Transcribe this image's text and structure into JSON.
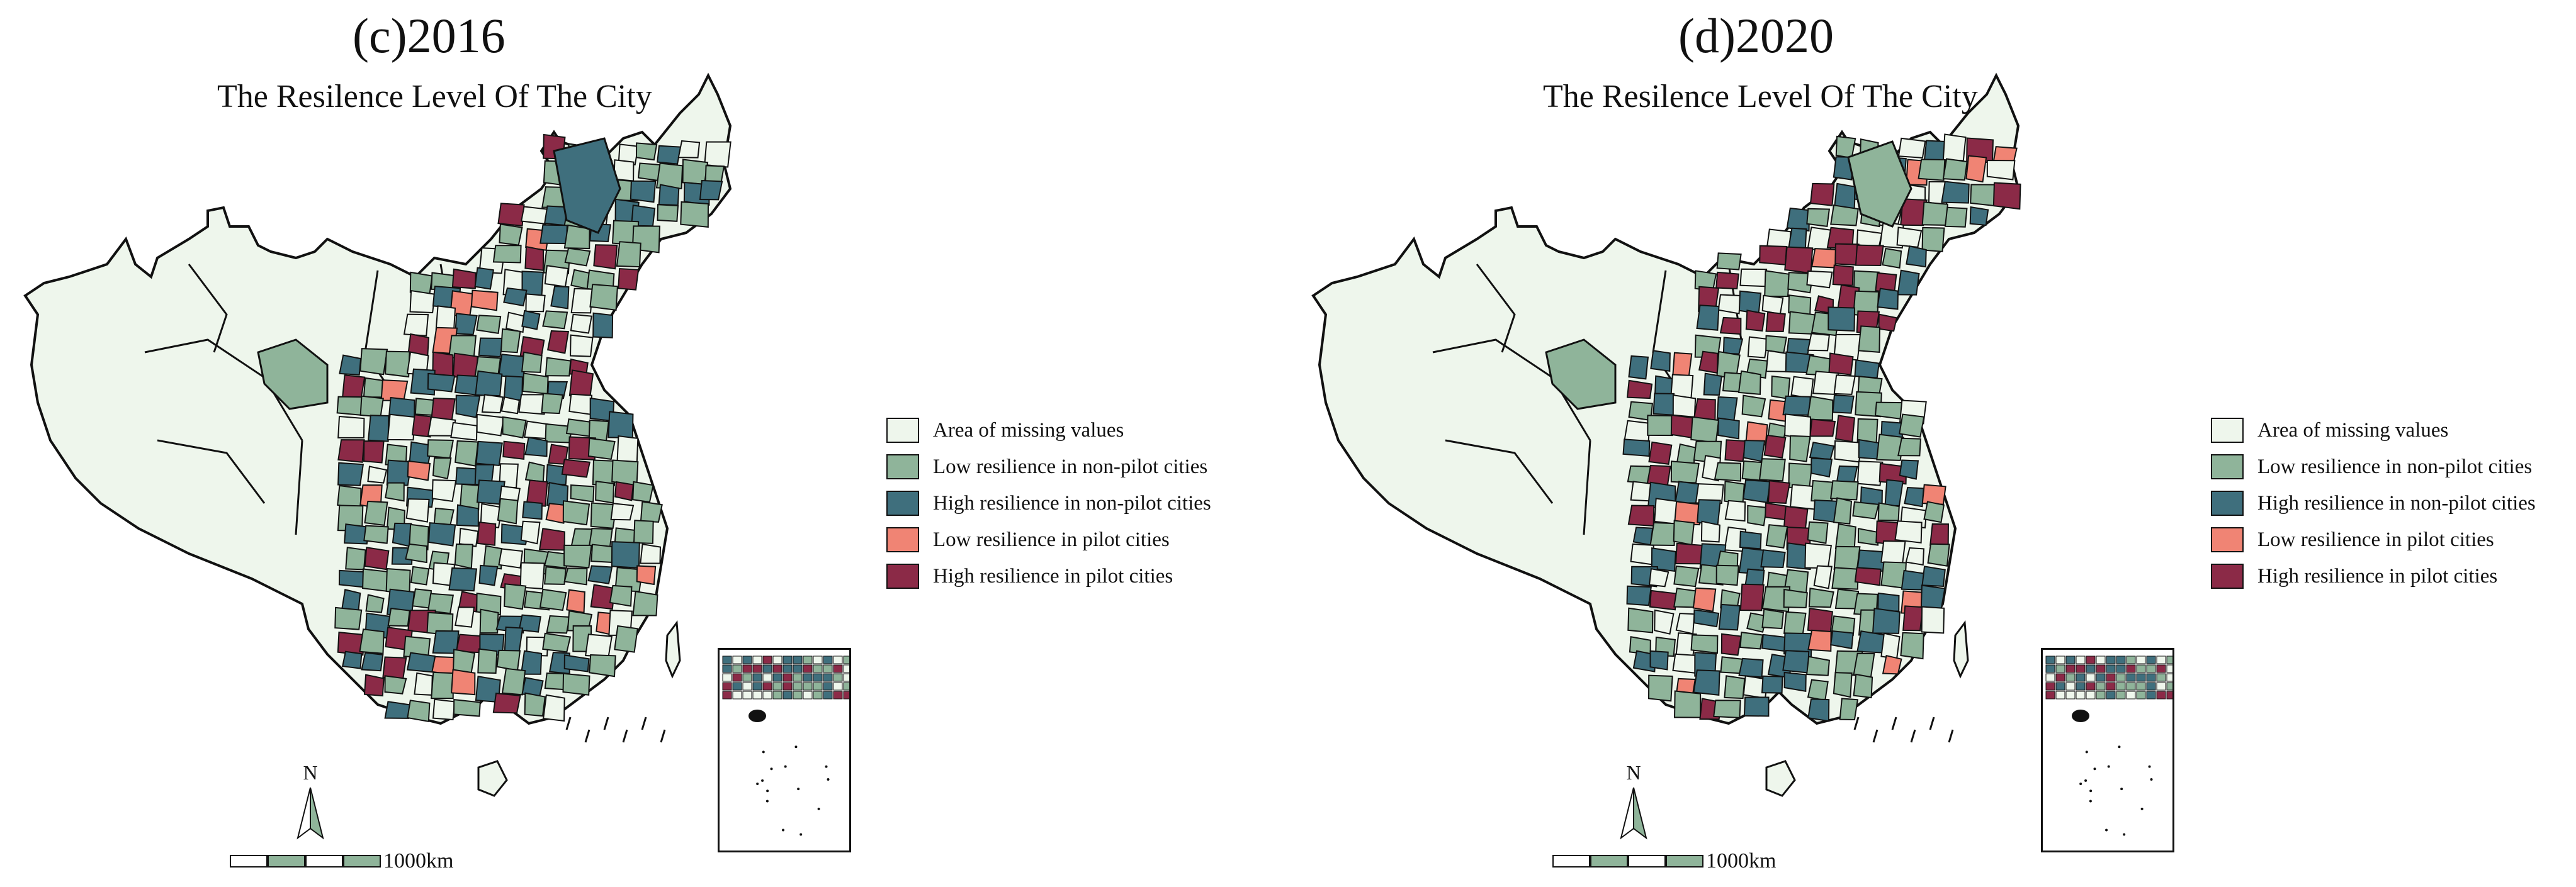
{
  "colors": {
    "missing": "#eef6ec",
    "low_nonpilot": "#8fb49a",
    "high_nonpilot": "#3f6f7d",
    "low_pilot": "#f08474",
    "high_pilot": "#8b2a47",
    "border": "#111111"
  },
  "panels": [
    {
      "title": "(c)2016",
      "subtitle": "The Resilence Level Of The City",
      "scale_label": "1000km",
      "north_label": "N"
    },
    {
      "title": "(d)2020",
      "subtitle": "The Resilence Level Of The City",
      "scale_label": "1000km",
      "north_label": "N"
    }
  ],
  "legend": [
    {
      "label": "Area of missing values",
      "color_key": "missing"
    },
    {
      "label": "Low resilience in non-pilot cities",
      "color_key": "low_nonpilot"
    },
    {
      "label": "High resilience in non-pilot cities",
      "color_key": "high_nonpilot"
    },
    {
      "label": "Low resilience in pilot cities",
      "color_key": "low_pilot"
    },
    {
      "label": "High resilience in pilot cities",
      "color_key": "high_pilot"
    }
  ]
}
